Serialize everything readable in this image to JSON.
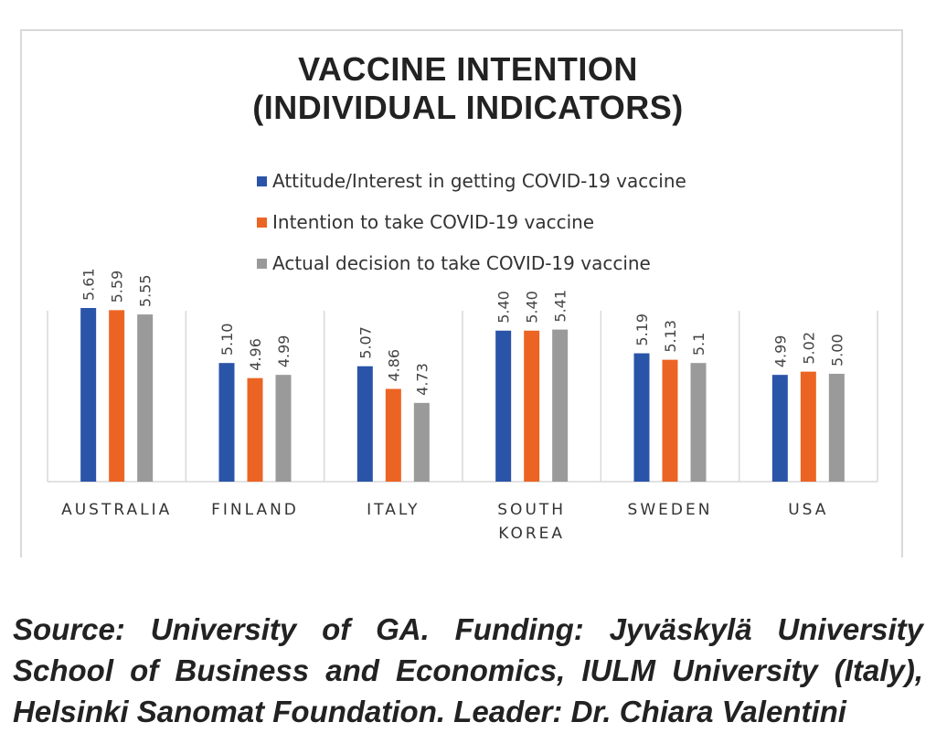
{
  "chart_data": {
    "type": "bar",
    "title_line1": "VACCINE INTENTION",
    "title_line2": "(INDIVIDUAL INDICATORS)",
    "categories": [
      "AUSTRALIA",
      "FINLAND",
      "ITALY",
      "SOUTH\nKOREA",
      "SWEDEN",
      "USA"
    ],
    "series": [
      {
        "name": "Attitude/Interest in getting COVID-19 vaccine",
        "color": "#2a54a8",
        "values": [
          5.61,
          5.1,
          5.07,
          5.4,
          5.19,
          4.99
        ],
        "labels": [
          "5.61",
          "5.10",
          "5.07",
          "5.40",
          "5.19",
          "4.99"
        ]
      },
      {
        "name": "Intention to take COVID-19 vaccine",
        "color": "#ec6424",
        "values": [
          5.59,
          4.96,
          4.86,
          5.4,
          5.13,
          5.02
        ],
        "labels": [
          "5.59",
          "4.96",
          "4.86",
          "5.40",
          "5.13",
          "5.02"
        ]
      },
      {
        "name": "Actual decision to take COVID-19 vaccine",
        "color": "#9a9a9a",
        "values": [
          5.55,
          4.99,
          4.73,
          5.41,
          5.1,
          5.0
        ],
        "labels": [
          "5.55",
          "4.99",
          "4.73",
          "5.41",
          "5.1",
          "5.00"
        ]
      }
    ],
    "ylim": [
      4.0,
      6.0
    ],
    "legend_position": "top-center",
    "grid": false
  },
  "caption": "Source: University of GA. Funding: Jyväskylä University School of Business and Economics, IULM University (Italy), Helsinki Sanomat Foundation. Leader: Dr. Chiara Valentini"
}
